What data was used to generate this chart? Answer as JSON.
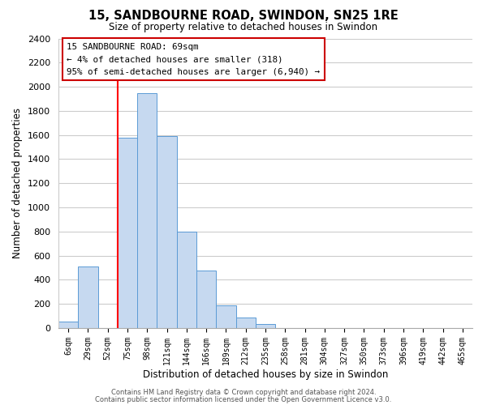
{
  "title": "15, SANDBOURNE ROAD, SWINDON, SN25 1RE",
  "subtitle": "Size of property relative to detached houses in Swindon",
  "xlabel": "Distribution of detached houses by size in Swindon",
  "ylabel": "Number of detached properties",
  "bar_color": "#c6d9f0",
  "bar_edge_color": "#5b9bd5",
  "bin_labels": [
    "6sqm",
    "29sqm",
    "52sqm",
    "75sqm",
    "98sqm",
    "121sqm",
    "144sqm",
    "166sqm",
    "189sqm",
    "212sqm",
    "235sqm",
    "258sqm",
    "281sqm",
    "304sqm",
    "327sqm",
    "350sqm",
    "373sqm",
    "396sqm",
    "419sqm",
    "442sqm",
    "465sqm"
  ],
  "bar_heights": [
    55,
    510,
    0,
    1580,
    1950,
    1590,
    800,
    480,
    190,
    90,
    35,
    0,
    0,
    0,
    0,
    0,
    0,
    0,
    0,
    0,
    0
  ],
  "ylim": [
    0,
    2400
  ],
  "yticks": [
    0,
    200,
    400,
    600,
    800,
    1000,
    1200,
    1400,
    1600,
    1800,
    2000,
    2200,
    2400
  ],
  "vline_color": "#ff0000",
  "annotation_line1": "15 SANDBOURNE ROAD: 69sqm",
  "annotation_line2": "← 4% of detached houses are smaller (318)",
  "annotation_line3": "95% of semi-detached houses are larger (6,940) →",
  "footer_line1": "Contains HM Land Registry data © Crown copyright and database right 2024.",
  "footer_line2": "Contains public sector information licensed under the Open Government Licence v3.0.",
  "background_color": "#ffffff",
  "grid_color": "#cccccc"
}
